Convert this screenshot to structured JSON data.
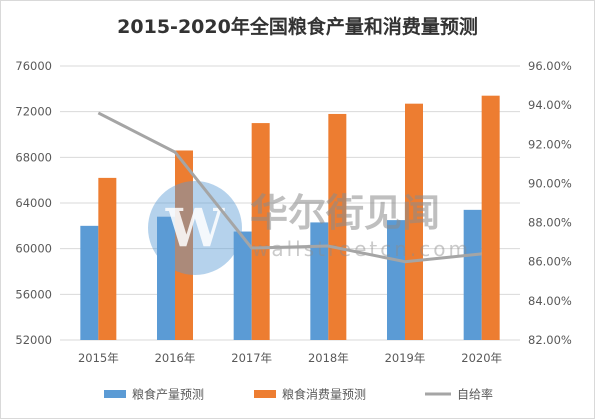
{
  "colors": {
    "production": "#5b9bd5",
    "consumption": "#ed7d31",
    "ratio": "#a5a5a5",
    "grid": "#d9d9d9",
    "text": "#595959",
    "watermark_circle": "#5b9bd5",
    "watermark_text": "#8c8c8c"
  },
  "watermark": {
    "brand": "华尔街见闻",
    "url": "wallstreetcn.com",
    "icon": "wallstreetcn-logo-icon"
  },
  "chart_data": {
    "type": "bar",
    "title": "2015-2020年全国粮食产量和消费量预测",
    "categories": [
      "2015年",
      "2016年",
      "2017年",
      "2018年",
      "2019年",
      "2020年"
    ],
    "series": [
      {
        "name": "粮食产量预测",
        "type": "bar",
        "axis": "left",
        "values": [
          62000,
          62800,
          61500,
          62300,
          62500,
          63400
        ]
      },
      {
        "name": "粮食消费量预测",
        "type": "bar",
        "axis": "left",
        "values": [
          66200,
          68600,
          71000,
          71800,
          72700,
          73400
        ]
      },
      {
        "name": "自给率",
        "type": "line",
        "axis": "right",
        "values": [
          93.6,
          91.6,
          86.7,
          86.8,
          86.0,
          86.4
        ]
      }
    ],
    "y_left": {
      "min": 52000,
      "max": 76000,
      "ticks": [
        "52000",
        "56000",
        "60000",
        "64000",
        "68000",
        "72000",
        "76000"
      ]
    },
    "y_right": {
      "min": 82,
      "max": 96,
      "ticks": [
        "82.00%",
        "84.00%",
        "86.00%",
        "88.00%",
        "90.00%",
        "92.00%",
        "94.00%",
        "96.00%"
      ]
    },
    "grid": true,
    "legend": "bottom"
  }
}
